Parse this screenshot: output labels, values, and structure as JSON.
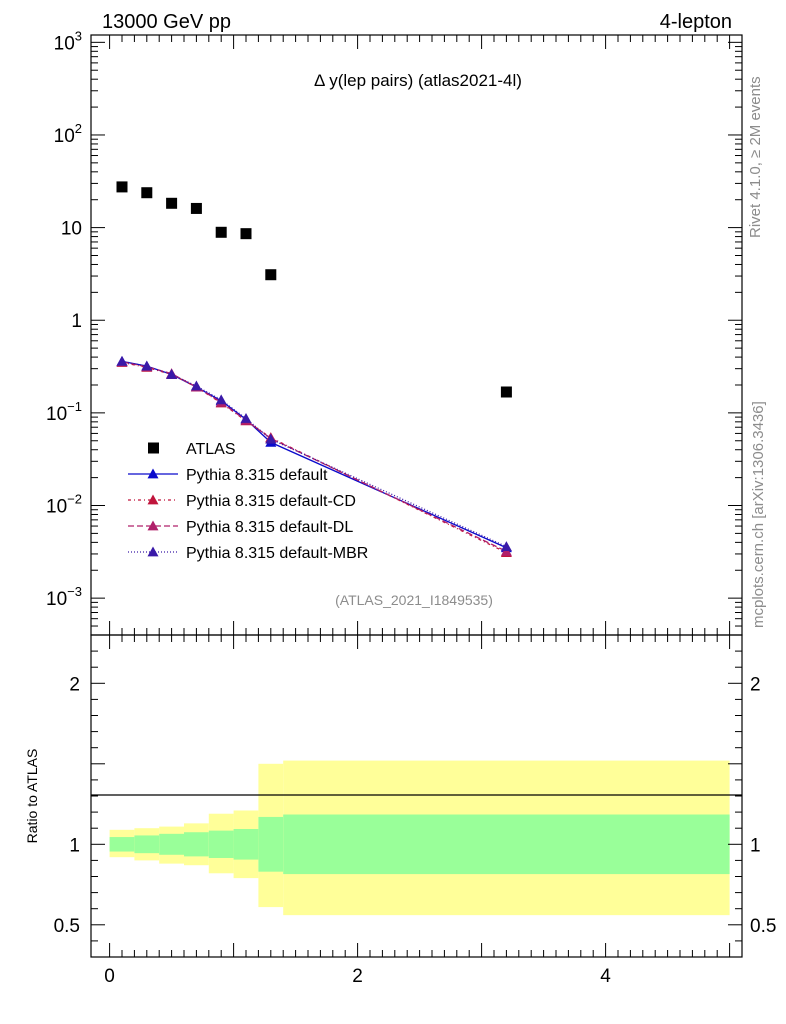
{
  "header": {
    "left_label": "13000 GeV pp",
    "right_label": "4-lepton"
  },
  "side_labels": {
    "rivet": "Rivet 4.1.0, ≥ 2M events",
    "mcplots": "mcplots.cern.ch [arXiv:1306.3436]"
  },
  "chart_data": {
    "type": "scatter",
    "title": "Δ y(lep pairs) (atlas2021-4l)",
    "watermark": "(ATLAS_2021_I1849535)",
    "main_panel": {
      "yscale": "log",
      "ylim": [
        0.0004,
        1200
      ],
      "xlim": [
        -0.15,
        5.1
      ],
      "ytick_labels": [
        {
          "value": 1000,
          "base": "10",
          "exp": "3"
        },
        {
          "value": 100,
          "base": "10",
          "exp": "2"
        },
        {
          "value": 10,
          "base": "10",
          "exp": ""
        },
        {
          "value": 1,
          "base": "1",
          "exp": ""
        },
        {
          "value": 0.1,
          "base": "10",
          "exp": "−1"
        },
        {
          "value": 0.01,
          "base": "10",
          "exp": "−2"
        },
        {
          "value": 0.001,
          "base": "10",
          "exp": "−3"
        }
      ]
    },
    "data": {
      "name": "ATLAS",
      "x": [
        0.1,
        0.3,
        0.5,
        0.7,
        0.9,
        1.1,
        1.3,
        3.2
      ],
      "y": [
        27.5,
        23.8,
        18.3,
        16.1,
        8.9,
        8.6,
        3.1,
        0.168
      ]
    },
    "series": [
      {
        "name": "Pythia 8.315 default",
        "color": "#0a0acc",
        "dash": "",
        "x": [
          0.1,
          0.3,
          0.5,
          0.7,
          0.9,
          1.1,
          1.3,
          3.2
        ],
        "y": [
          0.36,
          0.32,
          0.26,
          0.19,
          0.135,
          0.085,
          0.048,
          0.0035
        ]
      },
      {
        "name": "Pythia 8.315 default-CD",
        "color": "#c0143c",
        "dash": "3,3,1,3",
        "x": [
          0.1,
          0.3,
          0.5,
          0.7,
          0.9,
          1.1,
          1.3,
          3.2
        ],
        "y": [
          0.35,
          0.31,
          0.26,
          0.19,
          0.128,
          0.082,
          0.054,
          0.0031
        ]
      },
      {
        "name": "Pythia 8.315 default-DL",
        "color": "#b0206a",
        "dash": "6,3",
        "x": [
          0.1,
          0.3,
          0.5,
          0.7,
          0.9,
          1.1,
          1.3,
          3.2
        ],
        "y": [
          0.355,
          0.315,
          0.265,
          0.19,
          0.13,
          0.083,
          0.053,
          0.0032
        ]
      },
      {
        "name": "Pythia 8.315 default-MBR",
        "color": "#3a1aa8",
        "dash": "1,2",
        "x": [
          0.1,
          0.3,
          0.5,
          0.7,
          0.9,
          1.1,
          1.3,
          3.2
        ],
        "y": [
          0.36,
          0.32,
          0.26,
          0.195,
          0.138,
          0.087,
          0.052,
          0.0036
        ]
      }
    ],
    "ratio_panel": {
      "ylabel": "Ratio to ATLAS",
      "ylim": [
        0.3,
        2.3
      ],
      "ytick_labels": [
        "2",
        "1",
        "0.5"
      ],
      "ytick_values": [
        2,
        1,
        0.5
      ],
      "xtick_labels": [
        "0",
        "2",
        "4"
      ],
      "xtick_values": [
        0,
        2,
        4
      ],
      "bins": [
        0,
        0.2,
        0.4,
        0.6,
        0.8,
        1.0,
        1.2,
        1.4,
        5.0
      ],
      "yellow_low": [
        0.92,
        0.9,
        0.88,
        0.87,
        0.82,
        0.79,
        0.61,
        0.56
      ],
      "yellow_high": [
        1.09,
        1.1,
        1.11,
        1.13,
        1.19,
        1.21,
        1.5,
        1.52
      ],
      "green_low": [
        0.955,
        0.945,
        0.935,
        0.925,
        0.915,
        0.905,
        0.83,
        0.815
      ],
      "green_high": [
        1.045,
        1.055,
        1.065,
        1.075,
        1.085,
        1.095,
        1.17,
        1.185
      ]
    }
  },
  "colors": {
    "yellow_band": "#ffff99",
    "green_band": "#99ff99",
    "frame": "#000000"
  }
}
